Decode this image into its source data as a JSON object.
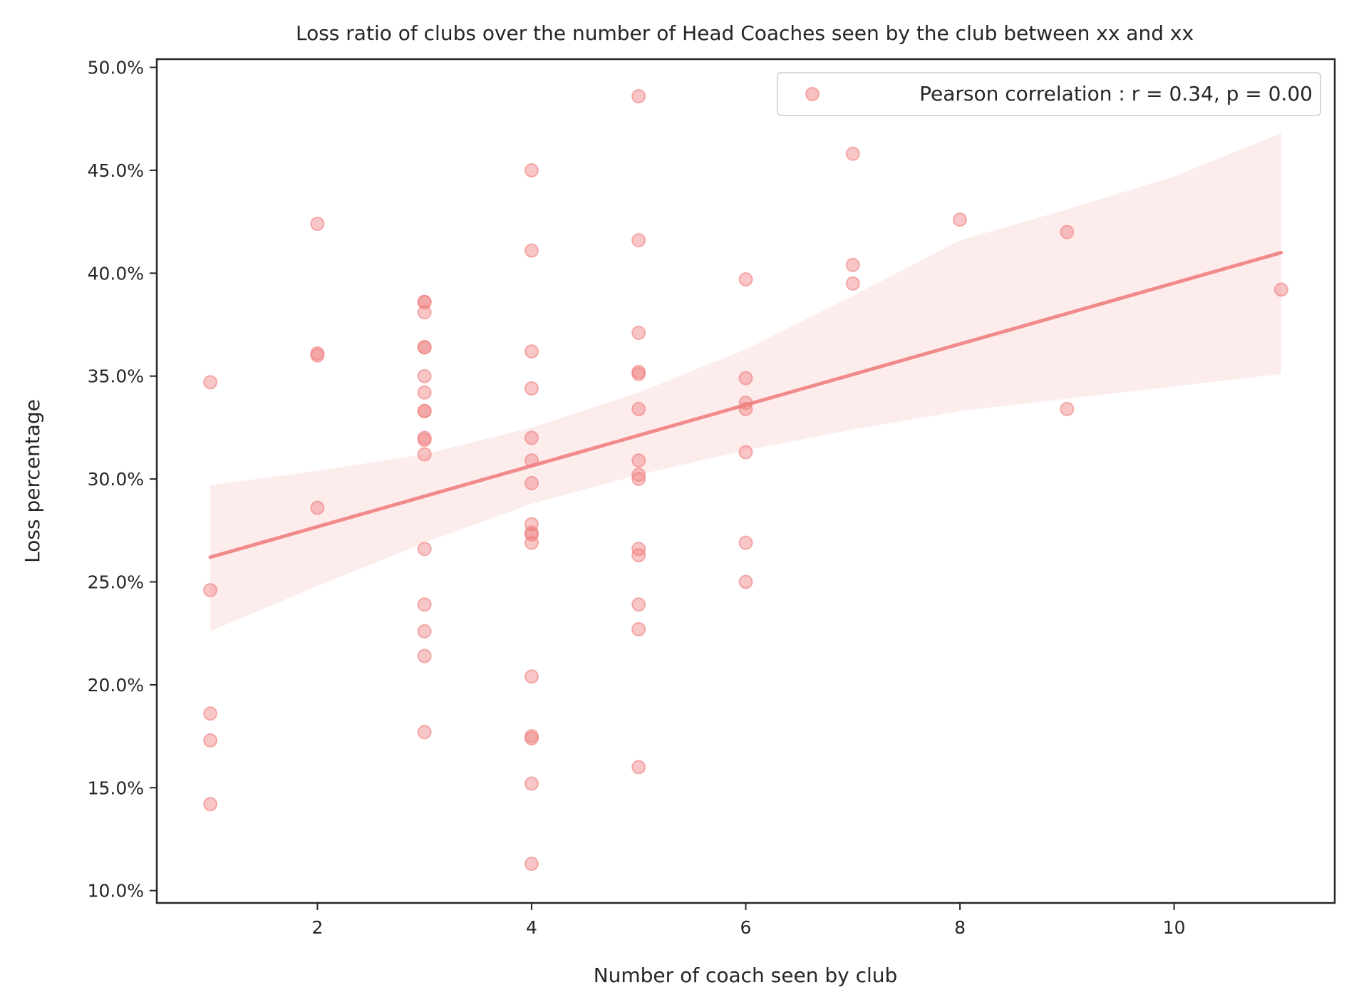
{
  "chart_data": {
    "type": "scatter",
    "title": "Loss ratio of clubs over the number of Head Coaches seen by the club between xx and xx",
    "xlabel": "Number of coach seen by club",
    "ylabel": "Loss percentage",
    "xlim": [
      0.5,
      11.5
    ],
    "ylim": [
      9.4,
      50.4
    ],
    "xticks": [
      2,
      4,
      6,
      8,
      10
    ],
    "xtick_labels": [
      "2",
      "4",
      "6",
      "8",
      "10"
    ],
    "yticks": [
      10,
      15,
      20,
      25,
      30,
      35,
      40,
      45,
      50
    ],
    "ytick_labels": [
      "10.0%",
      "15.0%",
      "20.0%",
      "25.0%",
      "30.0%",
      "35.0%",
      "40.0%",
      "45.0%",
      "50.0%"
    ],
    "grid": false,
    "legend_position": "top-right",
    "series": [
      {
        "name": "Pearson correlation : r = 0.34, p = 0.00",
        "color": "#f08080",
        "points": [
          [
            1,
            34.7
          ],
          [
            1,
            24.6
          ],
          [
            1,
            18.6
          ],
          [
            1,
            17.3
          ],
          [
            1,
            14.2
          ],
          [
            2,
            42.4
          ],
          [
            2,
            36.1
          ],
          [
            2,
            36.0
          ],
          [
            2,
            28.6
          ],
          [
            3,
            38.6
          ],
          [
            3,
            38.6
          ],
          [
            3,
            38.1
          ],
          [
            3,
            36.4
          ],
          [
            3,
            36.4
          ],
          [
            3,
            35.0
          ],
          [
            3,
            34.2
          ],
          [
            3,
            33.3
          ],
          [
            3,
            33.3
          ],
          [
            3,
            32.0
          ],
          [
            3,
            31.9
          ],
          [
            3,
            31.2
          ],
          [
            3,
            26.6
          ],
          [
            3,
            23.9
          ],
          [
            3,
            22.6
          ],
          [
            3,
            21.4
          ],
          [
            3,
            17.7
          ],
          [
            4,
            45.0
          ],
          [
            4,
            41.1
          ],
          [
            4,
            36.2
          ],
          [
            4,
            34.4
          ],
          [
            4,
            32.0
          ],
          [
            4,
            30.9
          ],
          [
            4,
            29.8
          ],
          [
            4,
            27.8
          ],
          [
            4,
            27.4
          ],
          [
            4,
            27.3
          ],
          [
            4,
            26.9
          ],
          [
            4,
            20.4
          ],
          [
            4,
            17.5
          ],
          [
            4,
            17.4
          ],
          [
            4,
            15.2
          ],
          [
            4,
            11.3
          ],
          [
            5,
            48.6
          ],
          [
            5,
            41.6
          ],
          [
            5,
            37.1
          ],
          [
            5,
            35.2
          ],
          [
            5,
            35.1
          ],
          [
            5,
            33.4
          ],
          [
            5,
            30.9
          ],
          [
            5,
            30.2
          ],
          [
            5,
            30.0
          ],
          [
            5,
            26.6
          ],
          [
            5,
            26.3
          ],
          [
            5,
            23.9
          ],
          [
            5,
            22.7
          ],
          [
            5,
            16.0
          ],
          [
            6,
            39.7
          ],
          [
            6,
            34.9
          ],
          [
            6,
            33.7
          ],
          [
            6,
            33.4
          ],
          [
            6,
            31.3
          ],
          [
            6,
            26.9
          ],
          [
            6,
            25.0
          ],
          [
            7,
            45.8
          ],
          [
            7,
            40.4
          ],
          [
            7,
            39.5
          ],
          [
            8,
            42.6
          ],
          [
            9,
            42.0
          ],
          [
            9,
            33.4
          ],
          [
            11,
            39.2
          ]
        ]
      }
    ],
    "regression": {
      "color": "#f08080",
      "line": [
        [
          1,
          26.2
        ],
        [
          11,
          41.0
        ]
      ],
      "ci_upper": [
        [
          1,
          29.7
        ],
        [
          2,
          30.4
        ],
        [
          3,
          31.2
        ],
        [
          4,
          32.5
        ],
        [
          5,
          34.2
        ],
        [
          6,
          36.3
        ],
        [
          7,
          38.9
        ],
        [
          8,
          41.6
        ],
        [
          9,
          43.1
        ],
        [
          10,
          44.7
        ],
        [
          11,
          46.8
        ]
      ],
      "ci_lower": [
        [
          1,
          22.6
        ],
        [
          2,
          24.8
        ],
        [
          3,
          26.9
        ],
        [
          4,
          28.8
        ],
        [
          5,
          30.2
        ],
        [
          6,
          31.4
        ],
        [
          7,
          32.4
        ],
        [
          8,
          33.3
        ],
        [
          9,
          33.9
        ],
        [
          10,
          34.5
        ],
        [
          11,
          35.1
        ]
      ]
    }
  }
}
